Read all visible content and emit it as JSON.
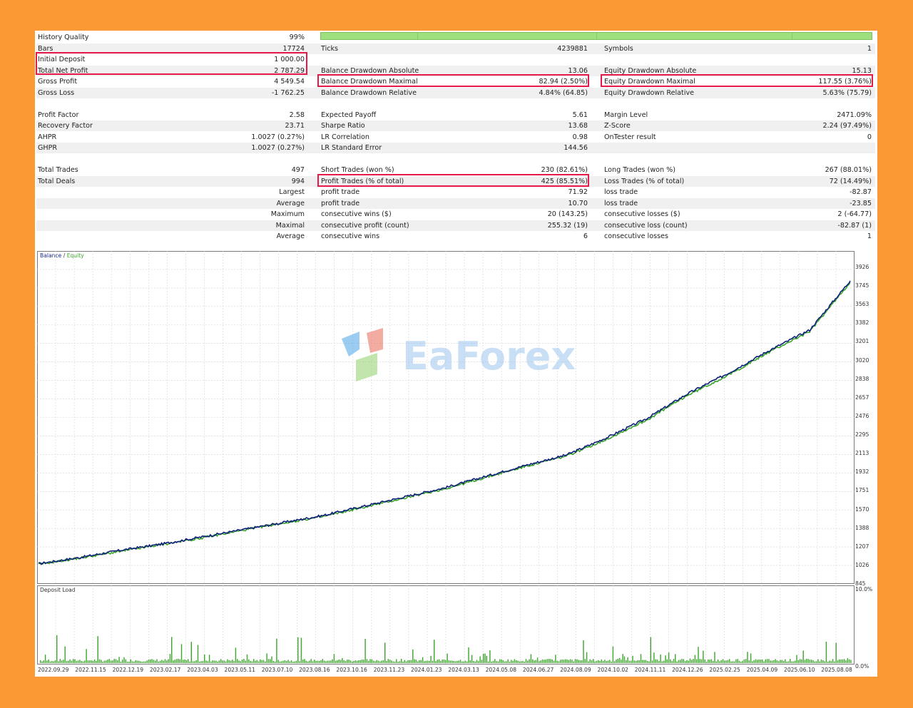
{
  "report": {
    "col1": [
      {
        "label": "History Quality",
        "value": "99%"
      },
      {
        "label": "Bars",
        "value": "17724"
      },
      {
        "label": "Initial Deposit",
        "value": "1 000.00"
      },
      {
        "label": "Total Net Profit",
        "value": "2 787.29"
      },
      {
        "label": "Gross Profit",
        "value": "4 549.54"
      },
      {
        "label": "Gross Loss",
        "value": "-1 762.25"
      },
      {
        "label": "",
        "value": ""
      },
      {
        "label": "Profit Factor",
        "value": "2.58"
      },
      {
        "label": "Recovery Factor",
        "value": "23.71"
      },
      {
        "label": "AHPR",
        "value": "1.0027 (0.27%)"
      },
      {
        "label": "GHPR",
        "value": "1.0027 (0.27%)"
      },
      {
        "label": "",
        "value": ""
      },
      {
        "label": "Total Trades",
        "value": "497"
      },
      {
        "label": "Total Deals",
        "value": "994"
      },
      {
        "label": "Largest",
        "value": ""
      },
      {
        "label": "Average",
        "value": ""
      },
      {
        "label": "Maximum",
        "value": ""
      },
      {
        "label": "Maximal",
        "value": ""
      },
      {
        "label": "Average",
        "value": ""
      }
    ],
    "col2": [
      {
        "label": "",
        "value": ""
      },
      {
        "label": "Ticks",
        "value": "4239881"
      },
      {
        "label": "",
        "value": ""
      },
      {
        "label": "Balance Drawdown Absolute",
        "value": "13.06"
      },
      {
        "label": "Balance Drawdown Maximal",
        "value": "82.94 (2.50%)"
      },
      {
        "label": "Balance Drawdown Relative",
        "value": "4.84% (64.85)"
      },
      {
        "label": "",
        "value": ""
      },
      {
        "label": "Expected Payoff",
        "value": "5.61"
      },
      {
        "label": "Sharpe Ratio",
        "value": "13.68"
      },
      {
        "label": "LR Correlation",
        "value": "0.98"
      },
      {
        "label": "LR Standard Error",
        "value": "144.56"
      },
      {
        "label": "",
        "value": ""
      },
      {
        "label": "Short Trades (won %)",
        "value": "230 (82.61%)"
      },
      {
        "label": "Profit Trades (% of total)",
        "value": "425 (85.51%)"
      },
      {
        "label": "profit trade",
        "value": "71.92"
      },
      {
        "label": "profit trade",
        "value": "10.70"
      },
      {
        "label": "consecutive wins ($)",
        "value": "20 (143.25)"
      },
      {
        "label": "consecutive profit (count)",
        "value": "255.32 (19)"
      },
      {
        "label": "consecutive wins",
        "value": "6"
      }
    ],
    "col3": [
      {
        "label": "",
        "value": ""
      },
      {
        "label": "Symbols",
        "value": "1"
      },
      {
        "label": "",
        "value": ""
      },
      {
        "label": "Equity Drawdown Absolute",
        "value": "15.13"
      },
      {
        "label": "Equity Drawdown Maximal",
        "value": "117.55 (3.76%)"
      },
      {
        "label": "Equity Drawdown Relative",
        "value": "5.63% (75.79)"
      },
      {
        "label": "",
        "value": ""
      },
      {
        "label": "Margin Level",
        "value": "2471.09%"
      },
      {
        "label": "Z-Score",
        "value": "2.24 (97.49%)"
      },
      {
        "label": "OnTester result",
        "value": "0"
      },
      {
        "label": "",
        "value": ""
      },
      {
        "label": "",
        "value": ""
      },
      {
        "label": "Long Trades (won %)",
        "value": "267 (88.01%)"
      },
      {
        "label": "Loss Trades (% of total)",
        "value": "72 (14.49%)"
      },
      {
        "label": "loss trade",
        "value": "-82.87"
      },
      {
        "label": "loss trade",
        "value": "-23.85"
      },
      {
        "label": "consecutive losses ($)",
        "value": "2 (-64.77)"
      },
      {
        "label": "consecutive loss (count)",
        "value": "-82.87 (1)"
      },
      {
        "label": "consecutive losses",
        "value": "1"
      }
    ]
  },
  "watermark": "EaForex",
  "chart": {
    "legend_balance": "Balance",
    "legend_sep": " / ",
    "legend_equity": "Equity",
    "y_ticks": [
      "3926",
      "3745",
      "3563",
      "3382",
      "3201",
      "3020",
      "2838",
      "2657",
      "2476",
      "2295",
      "2113",
      "1932",
      "1751",
      "1570",
      "1388",
      "1207",
      "1026",
      "845"
    ],
    "load_title": "Deposit Load",
    "load_ticks": [
      "10.0%",
      "0.0%"
    ],
    "x_dates": [
      "2022.09.29",
      "2022.11.15",
      "2022.12.19",
      "2023.02.17",
      "2023.04.03",
      "2023.05.11",
      "2023.07.10",
      "2023.08.16",
      "2023.10.16",
      "2023.11.23",
      "2024.01.23",
      "2024.03.13",
      "2024.05.08",
      "2024.06.27",
      "2024.08.09",
      "2024.10.02",
      "2024.11.11",
      "2024.12.26",
      "2025.02.25",
      "2025.04.09",
      "2025.06.10",
      "2025.08.08"
    ],
    "colors": {
      "balance": "#0f1f7a",
      "equity": "#3aa62a",
      "grid": "#d4d4d4",
      "highlight": "#e5194a"
    }
  },
  "chart_data": {
    "type": "line",
    "series": [
      {
        "name": "Balance",
        "x": [
          0,
          0.05,
          0.1,
          0.15,
          0.2,
          0.25,
          0.3,
          0.35,
          0.4,
          0.45,
          0.5,
          0.55,
          0.6,
          0.65,
          0.7,
          0.75,
          0.8,
          0.85,
          0.9,
          0.95,
          1.0
        ],
        "values": [
          1000,
          1060,
          1130,
          1190,
          1260,
          1330,
          1400,
          1470,
          1560,
          1650,
          1740,
          1850,
          1960,
          2060,
          2230,
          2420,
          2660,
          2860,
          3080,
          3280,
          3760
        ]
      },
      {
        "name": "Equity",
        "x": [
          0,
          0.05,
          0.1,
          0.15,
          0.2,
          0.25,
          0.3,
          0.35,
          0.4,
          0.45,
          0.5,
          0.55,
          0.6,
          0.65,
          0.7,
          0.75,
          0.8,
          0.85,
          0.9,
          0.95,
          1.0
        ],
        "values": [
          995,
          1055,
          1120,
          1185,
          1250,
          1325,
          1395,
          1460,
          1550,
          1640,
          1730,
          1840,
          1950,
          2050,
          2215,
          2405,
          2645,
          2840,
          3065,
          3265,
          3745
        ]
      }
    ],
    "ylim": [
      845,
      3926
    ]
  }
}
